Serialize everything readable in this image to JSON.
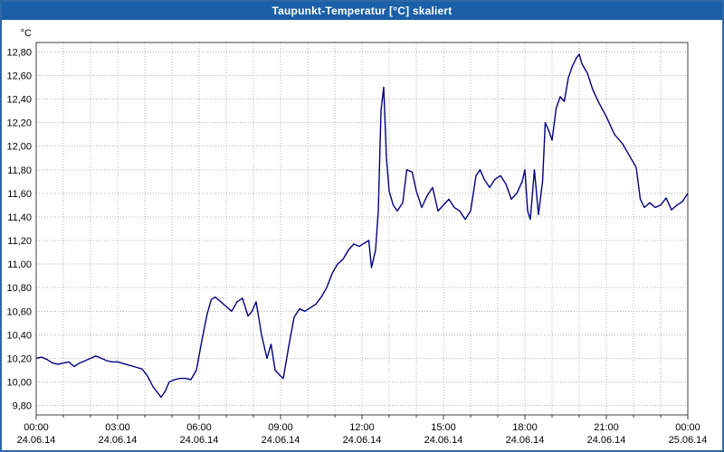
{
  "titlebar": {
    "title": "Taupunkt-Temperatur [°C] skaliert"
  },
  "chart_data": {
    "type": "line",
    "title": "Taupunkt-Temperatur [°C] skaliert",
    "xlabel": "",
    "ylabel": "°C",
    "xlim": [
      0,
      24
    ],
    "ylim": [
      9.72,
      12.88
    ],
    "grid": "dotted; vertical every 1 hour, horizontal every 0.2 °C",
    "legend_position": "none",
    "line_color": "#000080",
    "y_ticks": [
      12.8,
      12.6,
      12.4,
      12.2,
      12.0,
      11.8,
      11.6,
      11.4,
      11.2,
      11.0,
      10.8,
      10.6,
      10.4,
      10.2,
      10.0,
      9.8
    ],
    "y_tick_labels": [
      "12,80",
      "12,60",
      "12,40",
      "12,20",
      "12,00",
      "11,80",
      "11,60",
      "11,40",
      "11,20",
      "11,00",
      "10,80",
      "10,60",
      "10,40",
      "10,20",
      "10,00",
      "9,80"
    ],
    "x_ticks": [
      0,
      3,
      6,
      9,
      12,
      15,
      18,
      21,
      24
    ],
    "x_tick_labels": [
      "00:00",
      "03:00",
      "06:00",
      "09:00",
      "12:00",
      "15:00",
      "18:00",
      "21:00",
      "00:00"
    ],
    "x_tick_dates": [
      "24.06.14",
      "24.06.14",
      "24.06.14",
      "24.06.14",
      "24.06.14",
      "24.06.14",
      "24.06.14",
      "24.06.14",
      "25.06.14"
    ],
    "x_minor_step_hours": 1,
    "series": [
      {
        "name": "Taupunkt-Temperatur",
        "points": [
          [
            0,
            10.2
          ],
          [
            0.2,
            10.21
          ],
          [
            0.4,
            10.19
          ],
          [
            0.6,
            10.16
          ],
          [
            0.8,
            10.15
          ],
          [
            1.0,
            10.16
          ],
          [
            1.2,
            10.17
          ],
          [
            1.4,
            10.13
          ],
          [
            1.6,
            10.16
          ],
          [
            1.8,
            10.18
          ],
          [
            2.0,
            10.2
          ],
          [
            2.2,
            10.22
          ],
          [
            2.4,
            10.2
          ],
          [
            2.6,
            10.18
          ],
          [
            2.8,
            10.17
          ],
          [
            3.0,
            10.17
          ],
          [
            3.3,
            10.15
          ],
          [
            3.6,
            10.13
          ],
          [
            3.9,
            10.11
          ],
          [
            4.1,
            10.05
          ],
          [
            4.3,
            9.96
          ],
          [
            4.5,
            9.9
          ],
          [
            4.6,
            9.87
          ],
          [
            4.75,
            9.92
          ],
          [
            4.9,
            10.0
          ],
          [
            5.1,
            10.02
          ],
          [
            5.3,
            10.03
          ],
          [
            5.5,
            10.03
          ],
          [
            5.7,
            10.02
          ],
          [
            5.9,
            10.1
          ],
          [
            6.1,
            10.35
          ],
          [
            6.3,
            10.58
          ],
          [
            6.45,
            10.7
          ],
          [
            6.6,
            10.72
          ],
          [
            6.8,
            10.68
          ],
          [
            7.0,
            10.64
          ],
          [
            7.2,
            10.6
          ],
          [
            7.4,
            10.68
          ],
          [
            7.6,
            10.71
          ],
          [
            7.8,
            10.56
          ],
          [
            7.95,
            10.6
          ],
          [
            8.1,
            10.68
          ],
          [
            8.3,
            10.4
          ],
          [
            8.5,
            10.2
          ],
          [
            8.65,
            10.32
          ],
          [
            8.8,
            10.1
          ],
          [
            9.0,
            10.05
          ],
          [
            9.1,
            10.03
          ],
          [
            9.3,
            10.3
          ],
          [
            9.5,
            10.55
          ],
          [
            9.7,
            10.62
          ],
          [
            9.9,
            10.6
          ],
          [
            10.1,
            10.63
          ],
          [
            10.3,
            10.66
          ],
          [
            10.5,
            10.72
          ],
          [
            10.7,
            10.8
          ],
          [
            10.9,
            10.92
          ],
          [
            11.1,
            11.0
          ],
          [
            11.3,
            11.04
          ],
          [
            11.5,
            11.12
          ],
          [
            11.7,
            11.17
          ],
          [
            11.9,
            11.15
          ],
          [
            12.1,
            11.18
          ],
          [
            12.25,
            11.2
          ],
          [
            12.35,
            10.97
          ],
          [
            12.5,
            11.12
          ],
          [
            12.6,
            11.45
          ],
          [
            12.7,
            12.3
          ],
          [
            12.8,
            12.5
          ],
          [
            12.9,
            11.9
          ],
          [
            13.0,
            11.62
          ],
          [
            13.15,
            11.5
          ],
          [
            13.3,
            11.45
          ],
          [
            13.5,
            11.52
          ],
          [
            13.65,
            11.8
          ],
          [
            13.85,
            11.78
          ],
          [
            14.0,
            11.62
          ],
          [
            14.2,
            11.48
          ],
          [
            14.4,
            11.58
          ],
          [
            14.6,
            11.65
          ],
          [
            14.8,
            11.45
          ],
          [
            15.0,
            11.5
          ],
          [
            15.2,
            11.55
          ],
          [
            15.4,
            11.48
          ],
          [
            15.6,
            11.45
          ],
          [
            15.8,
            11.38
          ],
          [
            16.0,
            11.45
          ],
          [
            16.2,
            11.75
          ],
          [
            16.35,
            11.8
          ],
          [
            16.5,
            11.72
          ],
          [
            16.7,
            11.65
          ],
          [
            16.9,
            11.72
          ],
          [
            17.1,
            11.75
          ],
          [
            17.3,
            11.68
          ],
          [
            17.5,
            11.55
          ],
          [
            17.7,
            11.6
          ],
          [
            17.9,
            11.7
          ],
          [
            18.0,
            11.8
          ],
          [
            18.1,
            11.45
          ],
          [
            18.2,
            11.38
          ],
          [
            18.35,
            11.8
          ],
          [
            18.5,
            11.42
          ],
          [
            18.65,
            11.7
          ],
          [
            18.75,
            12.2
          ],
          [
            18.9,
            12.12
          ],
          [
            19.0,
            12.05
          ],
          [
            19.15,
            12.32
          ],
          [
            19.3,
            12.42
          ],
          [
            19.45,
            12.38
          ],
          [
            19.6,
            12.58
          ],
          [
            19.75,
            12.68
          ],
          [
            19.9,
            12.75
          ],
          [
            20.0,
            12.78
          ],
          [
            20.1,
            12.7
          ],
          [
            20.3,
            12.62
          ],
          [
            20.5,
            12.48
          ],
          [
            20.7,
            12.38
          ],
          [
            21.0,
            12.25
          ],
          [
            21.3,
            12.1
          ],
          [
            21.6,
            12.02
          ],
          [
            21.9,
            11.9
          ],
          [
            22.1,
            11.82
          ],
          [
            22.25,
            11.55
          ],
          [
            22.4,
            11.48
          ],
          [
            22.6,
            11.52
          ],
          [
            22.8,
            11.48
          ],
          [
            23.0,
            11.5
          ],
          [
            23.2,
            11.56
          ],
          [
            23.4,
            11.46
          ],
          [
            23.6,
            11.5
          ],
          [
            23.8,
            11.53
          ],
          [
            24.0,
            11.6
          ]
        ]
      }
    ]
  }
}
